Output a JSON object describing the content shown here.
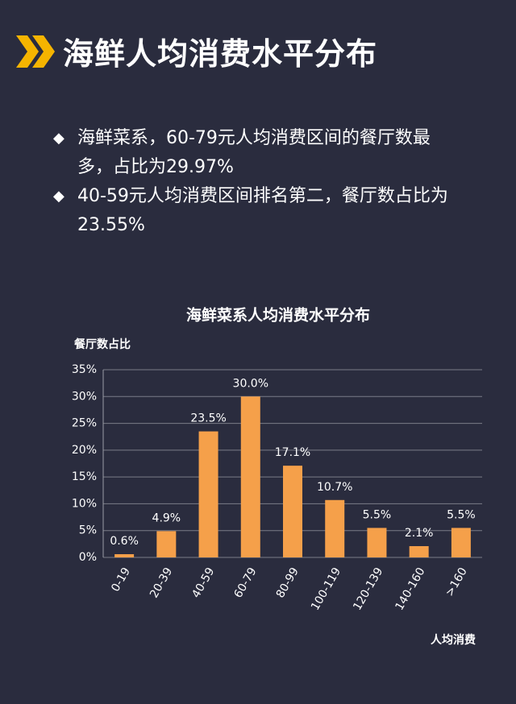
{
  "header": {
    "title": "海鲜人均消费水平分布"
  },
  "bullets": [
    "海鲜菜系，60-79元人均消费区间的餐厅数最多，占比为29.97%",
    "40-59元人均消费区间排名第二，餐厅数占比为23.55%"
  ],
  "chart_data": {
    "type": "bar",
    "title": "海鲜菜系人均消费水平分布",
    "y_label": "餐厅数占比",
    "x_label": "人均消费",
    "categories": [
      "0-19",
      "20-39",
      "40-59",
      "60-79",
      "80-99",
      "100-119",
      "120-139",
      "140-160",
      ">160"
    ],
    "values": [
      0.6,
      4.9,
      23.5,
      30.0,
      17.1,
      10.7,
      5.5,
      2.1,
      5.5
    ],
    "value_labels": [
      "0.6%",
      "4.9%",
      "23.5%",
      "30.0%",
      "17.1%",
      "10.7%",
      "5.5%",
      "2.1%",
      "5.5%"
    ],
    "color": "#f5a04a",
    "ylim": [
      0,
      35
    ],
    "yticks": [
      {
        "value": 0,
        "label": "0%"
      },
      {
        "value": 5,
        "label": "5%"
      },
      {
        "value": 10,
        "label": "10%"
      },
      {
        "value": 15,
        "label": "15%"
      },
      {
        "value": 20,
        "label": "20%"
      },
      {
        "value": 25,
        "label": "25%"
      },
      {
        "value": 30,
        "label": "30%"
      },
      {
        "value": 35,
        "label": "35%"
      }
    ],
    "grid": true
  }
}
